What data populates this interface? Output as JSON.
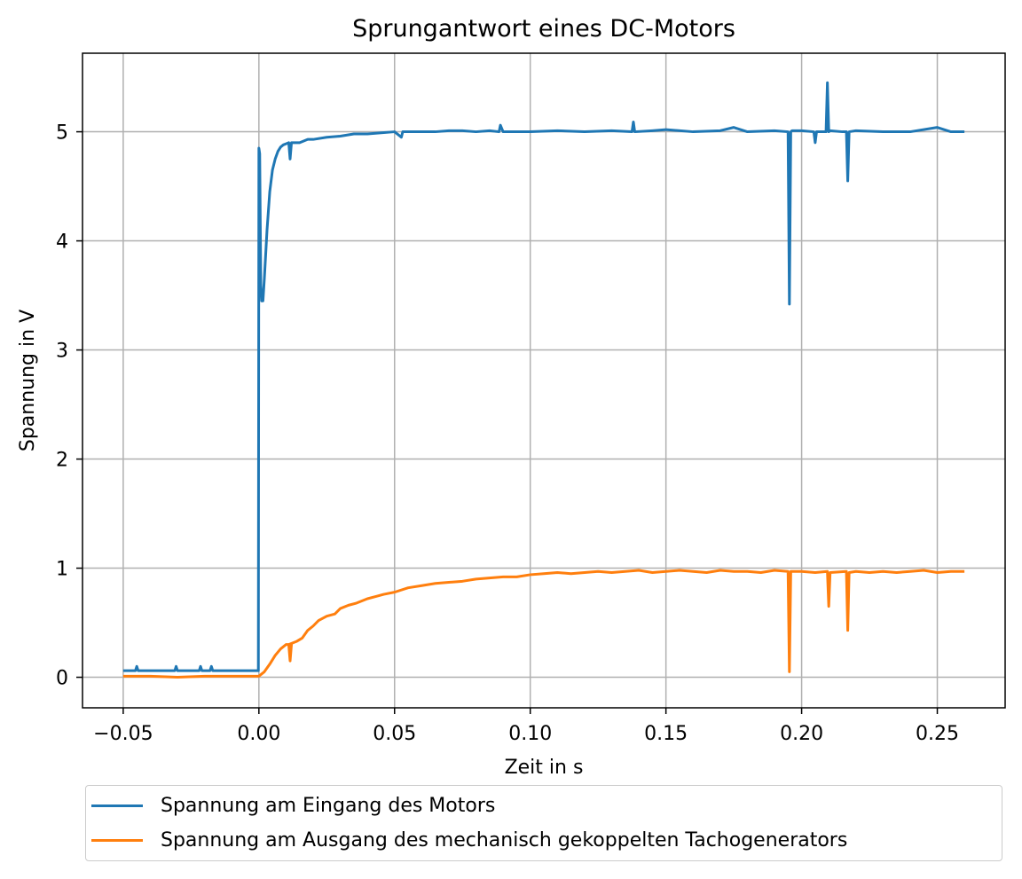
{
  "chart_data": {
    "type": "line",
    "title": "Sprungantwort eines DC-Motors",
    "xlabel": "Zeit in s",
    "ylabel": "Spannung in V",
    "xlim": [
      -0.065,
      0.275
    ],
    "ylim": [
      -0.28,
      5.72
    ],
    "xticks": [
      -0.05,
      0.0,
      0.05,
      0.1,
      0.15,
      0.2,
      0.25
    ],
    "xtick_labels": [
      "−0.05",
      "0.00",
      "0.05",
      "0.10",
      "0.15",
      "0.20",
      "0.25"
    ],
    "yticks": [
      0,
      1,
      2,
      3,
      4,
      5
    ],
    "ytick_labels": [
      "0",
      "1",
      "2",
      "3",
      "4",
      "5"
    ],
    "grid": true,
    "legend_position": "below",
    "series": [
      {
        "name": "Spannung am Eingang des Motors",
        "color": "#1f77b4",
        "x": [
          -0.05,
          -0.0455,
          -0.045,
          -0.0445,
          -0.031,
          -0.0305,
          -0.03,
          -0.022,
          -0.0215,
          -0.021,
          -0.018,
          -0.0175,
          -0.017,
          -0.0002,
          0.0,
          0.0003,
          0.0007,
          0.001,
          0.0015,
          0.002,
          0.003,
          0.004,
          0.005,
          0.006,
          0.007,
          0.008,
          0.009,
          0.01,
          0.011,
          0.0115,
          0.012,
          0.015,
          0.018,
          0.02,
          0.025,
          0.03,
          0.035,
          0.04,
          0.045,
          0.05,
          0.0525,
          0.053,
          0.055,
          0.06,
          0.065,
          0.07,
          0.075,
          0.08,
          0.085,
          0.0885,
          0.089,
          0.09,
          0.1,
          0.11,
          0.12,
          0.13,
          0.1375,
          0.138,
          0.1385,
          0.145,
          0.15,
          0.16,
          0.17,
          0.175,
          0.18,
          0.19,
          0.195,
          0.1955,
          0.196,
          0.1965,
          0.2,
          0.2045,
          0.205,
          0.2055,
          0.209,
          0.2095,
          0.21,
          0.2105,
          0.215,
          0.2165,
          0.217,
          0.2175,
          0.22,
          0.23,
          0.24,
          0.25,
          0.255,
          0.26
        ],
        "y": [
          0.06,
          0.06,
          0.1,
          0.06,
          0.06,
          0.1,
          0.06,
          0.06,
          0.1,
          0.06,
          0.06,
          0.1,
          0.06,
          0.06,
          4.85,
          4.8,
          3.6,
          3.45,
          3.45,
          3.65,
          4.1,
          4.45,
          4.65,
          4.75,
          4.82,
          4.86,
          4.88,
          4.89,
          4.9,
          4.75,
          4.9,
          4.9,
          4.93,
          4.93,
          4.95,
          4.96,
          4.98,
          4.98,
          4.99,
          5.0,
          4.95,
          5.0,
          5.0,
          5.0,
          5.0,
          5.01,
          5.01,
          5.0,
          5.01,
          5.0,
          5.06,
          5.0,
          5.0,
          5.01,
          5.0,
          5.01,
          5.0,
          5.09,
          5.0,
          5.01,
          5.02,
          5.0,
          5.01,
          5.04,
          5.0,
          5.01,
          5.0,
          3.42,
          5.0,
          5.01,
          5.01,
          5.0,
          4.9,
          5.0,
          5.0,
          5.45,
          5.0,
          5.01,
          5.0,
          5.0,
          4.55,
          5.0,
          5.01,
          5.0,
          5.0,
          5.04,
          5.0,
          5.0
        ]
      },
      {
        "name": "Spannung am Ausgang des mechanisch gekoppelten Tachogenerators",
        "color": "#ff7f0e",
        "x": [
          -0.05,
          -0.04,
          -0.03,
          -0.02,
          -0.01,
          0.0,
          0.002,
          0.004,
          0.006,
          0.008,
          0.01,
          0.012,
          0.0115,
          0.011,
          0.014,
          0.016,
          0.018,
          0.02,
          0.022,
          0.025,
          0.028,
          0.03,
          0.033,
          0.036,
          0.04,
          0.043,
          0.046,
          0.05,
          0.055,
          0.06,
          0.065,
          0.07,
          0.075,
          0.08,
          0.085,
          0.09,
          0.095,
          0.1,
          0.105,
          0.11,
          0.115,
          0.12,
          0.125,
          0.13,
          0.135,
          0.14,
          0.145,
          0.15,
          0.155,
          0.16,
          0.165,
          0.17,
          0.175,
          0.18,
          0.185,
          0.19,
          0.195,
          0.1955,
          0.196,
          0.1965,
          0.2,
          0.205,
          0.2095,
          0.21,
          0.2105,
          0.2165,
          0.217,
          0.2175,
          0.22,
          0.225,
          0.23,
          0.235,
          0.24,
          0.245,
          0.25,
          0.255,
          0.26
        ],
        "y": [
          0.01,
          0.01,
          0.0,
          0.01,
          0.01,
          0.01,
          0.05,
          0.12,
          0.2,
          0.26,
          0.3,
          0.3,
          0.15,
          0.3,
          0.33,
          0.36,
          0.43,
          0.47,
          0.52,
          0.56,
          0.58,
          0.63,
          0.66,
          0.68,
          0.72,
          0.74,
          0.76,
          0.78,
          0.82,
          0.84,
          0.86,
          0.87,
          0.88,
          0.9,
          0.91,
          0.92,
          0.92,
          0.94,
          0.95,
          0.96,
          0.95,
          0.96,
          0.97,
          0.96,
          0.97,
          0.98,
          0.96,
          0.97,
          0.98,
          0.97,
          0.96,
          0.98,
          0.97,
          0.97,
          0.96,
          0.98,
          0.97,
          0.05,
          0.97,
          0.97,
          0.97,
          0.96,
          0.97,
          0.65,
          0.96,
          0.97,
          0.43,
          0.96,
          0.97,
          0.96,
          0.97,
          0.96,
          0.97,
          0.98,
          0.96,
          0.97,
          0.97
        ]
      }
    ]
  }
}
